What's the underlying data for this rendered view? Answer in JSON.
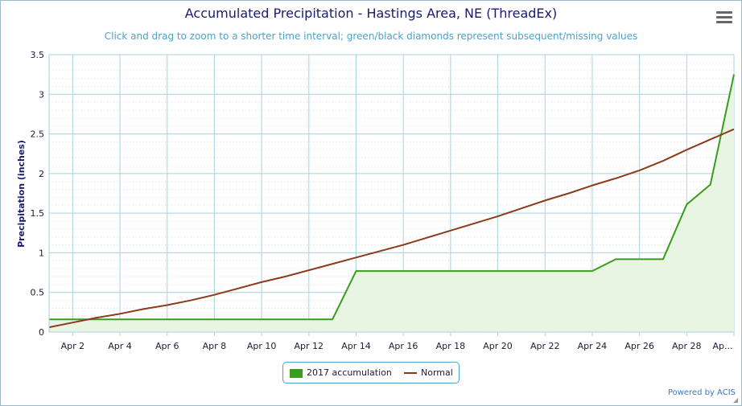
{
  "header": {
    "title": "Accumulated Precipitation - Hastings Area, NE (ThreadEx)",
    "subtitle": "Click and drag to zoom to a shorter time interval; green/black diamonds represent subsequent/missing values"
  },
  "footer": {
    "credits": "Powered by ACIS"
  },
  "colors": {
    "accumulation": "#3a9c1e",
    "accumulation_fill": "#e9f5e3",
    "normal": "#8b3a1a",
    "grid": "#a9d3df",
    "minor_grid": "#d8d8d8",
    "title": "#1a1a6e",
    "axis_text": "#1a1a3a"
  },
  "chart_data": {
    "type": "line",
    "title": "Accumulated Precipitation - Hastings Area, NE (ThreadEx)",
    "xlabel": "",
    "ylabel": "Precipitation (inches)",
    "ylim": [
      0,
      3.5
    ],
    "xlim": [
      1,
      30
    ],
    "yticks": [
      "0",
      "0.5",
      "1",
      "1.5",
      "2",
      "2.5",
      "3",
      "3.5"
    ],
    "ytick_values": [
      0,
      0.5,
      1,
      1.5,
      2,
      2.5,
      3,
      3.5
    ],
    "xticks": [
      "Apr 2",
      "Apr 4",
      "Apr 6",
      "Apr 8",
      "Apr 10",
      "Apr 12",
      "Apr 14",
      "Apr 16",
      "Apr 18",
      "Apr 20",
      "Apr 22",
      "Apr 24",
      "Apr 26",
      "Apr 28",
      "Ap..."
    ],
    "xtick_values": [
      2,
      4,
      6,
      8,
      10,
      12,
      14,
      16,
      18,
      20,
      22,
      24,
      26,
      28,
      30
    ],
    "grid": true,
    "legend_position": "bottom-center",
    "series": [
      {
        "name": "2017 accumulation",
        "style": "area",
        "x": [
          1,
          2,
          3,
          4,
          5,
          6,
          7,
          8,
          9,
          10,
          11,
          12,
          13,
          14,
          15,
          16,
          17,
          18,
          19,
          20,
          21,
          22,
          23,
          24,
          25,
          26,
          27,
          28,
          29,
          30
        ],
        "values": [
          0.16,
          0.16,
          0.16,
          0.16,
          0.16,
          0.16,
          0.16,
          0.16,
          0.16,
          0.16,
          0.16,
          0.16,
          0.16,
          0.77,
          0.77,
          0.77,
          0.77,
          0.77,
          0.77,
          0.77,
          0.77,
          0.77,
          0.77,
          0.77,
          0.92,
          0.92,
          0.92,
          1.61,
          1.86,
          3.25
        ]
      },
      {
        "name": "Normal",
        "style": "line",
        "x": [
          1,
          2,
          3,
          4,
          5,
          6,
          7,
          8,
          9,
          10,
          11,
          12,
          13,
          14,
          15,
          16,
          17,
          18,
          19,
          20,
          21,
          22,
          23,
          24,
          25,
          26,
          27,
          28,
          29,
          30
        ],
        "values": [
          0.06,
          0.12,
          0.18,
          0.23,
          0.29,
          0.34,
          0.4,
          0.47,
          0.55,
          0.63,
          0.7,
          0.78,
          0.86,
          0.94,
          1.02,
          1.1,
          1.19,
          1.28,
          1.37,
          1.46,
          1.56,
          1.66,
          1.75,
          1.85,
          1.94,
          2.04,
          2.16,
          2.3,
          2.43,
          2.56
        ]
      }
    ]
  }
}
